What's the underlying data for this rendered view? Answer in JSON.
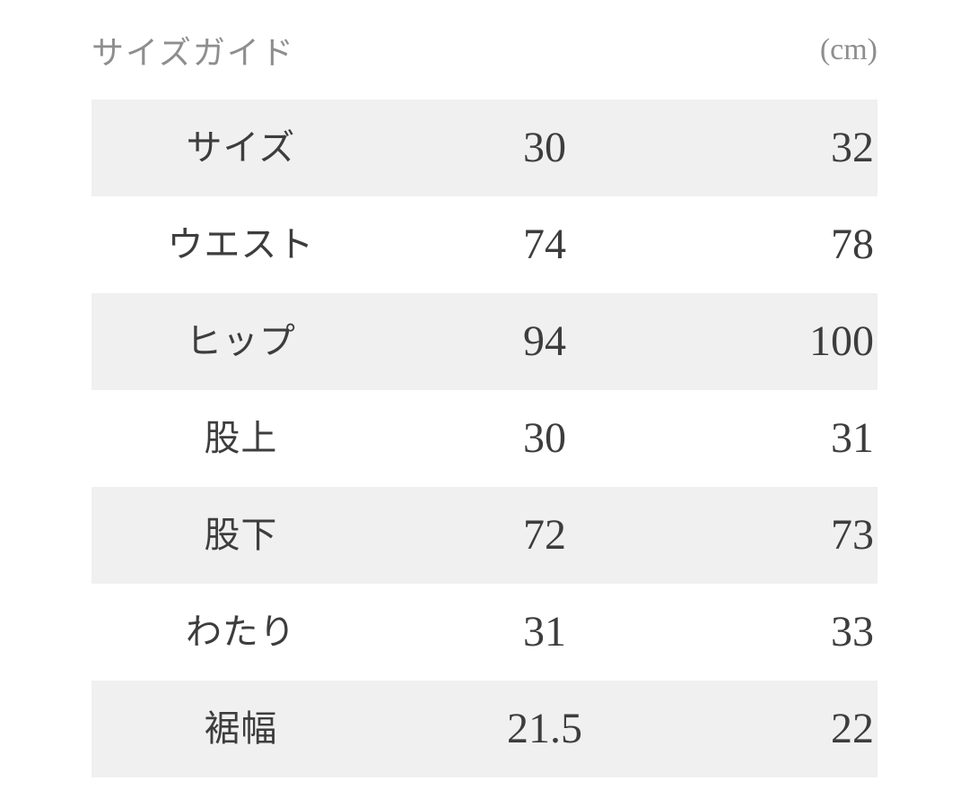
{
  "header": {
    "title": "サイズガイド",
    "unit": "(cm)"
  },
  "size_table": {
    "size_columns": [
      "30",
      "32"
    ],
    "rows": [
      {
        "label": "サイズ",
        "value_1": "30",
        "value_2": "32"
      },
      {
        "label": "ウエスト",
        "value_1": "74",
        "value_2": "78"
      },
      {
        "label": "ヒップ",
        "value_1": "94",
        "value_2": "100"
      },
      {
        "label": "股上",
        "value_1": "30",
        "value_2": "31"
      },
      {
        "label": "股下",
        "value_1": "72",
        "value_2": "73"
      },
      {
        "label": "わたり",
        "value_1": "31",
        "value_2": "33"
      },
      {
        "label": "裾幅",
        "value_1": "21.5",
        "value_2": "22"
      }
    ]
  },
  "colors": {
    "row_shade": "#f0f0f0",
    "text": "#3d3d3d",
    "muted": "#8e8e8e",
    "page_bg": "#ffffff"
  }
}
